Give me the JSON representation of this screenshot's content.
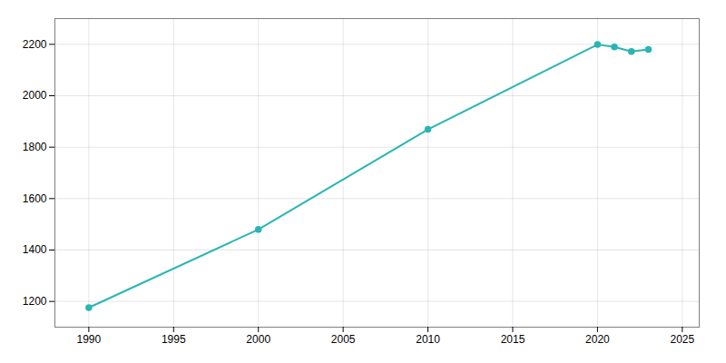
{
  "chart_data": {
    "type": "line",
    "x": [
      1990,
      2000,
      2010,
      2020,
      2021,
      2022,
      2023
    ],
    "values": [
      1176,
      1480,
      1869,
      2199,
      2190,
      2172,
      2180
    ],
    "color": "#2ab5b5",
    "marker": "circle",
    "xlim": [
      1988,
      2026
    ],
    "ylim": [
      1100,
      2300
    ],
    "xticks": [
      1990,
      1995,
      2000,
      2005,
      2010,
      2015,
      2020,
      2025
    ],
    "yticks": [
      1200,
      1400,
      1600,
      1800,
      2000,
      2200
    ],
    "grid": true
  }
}
